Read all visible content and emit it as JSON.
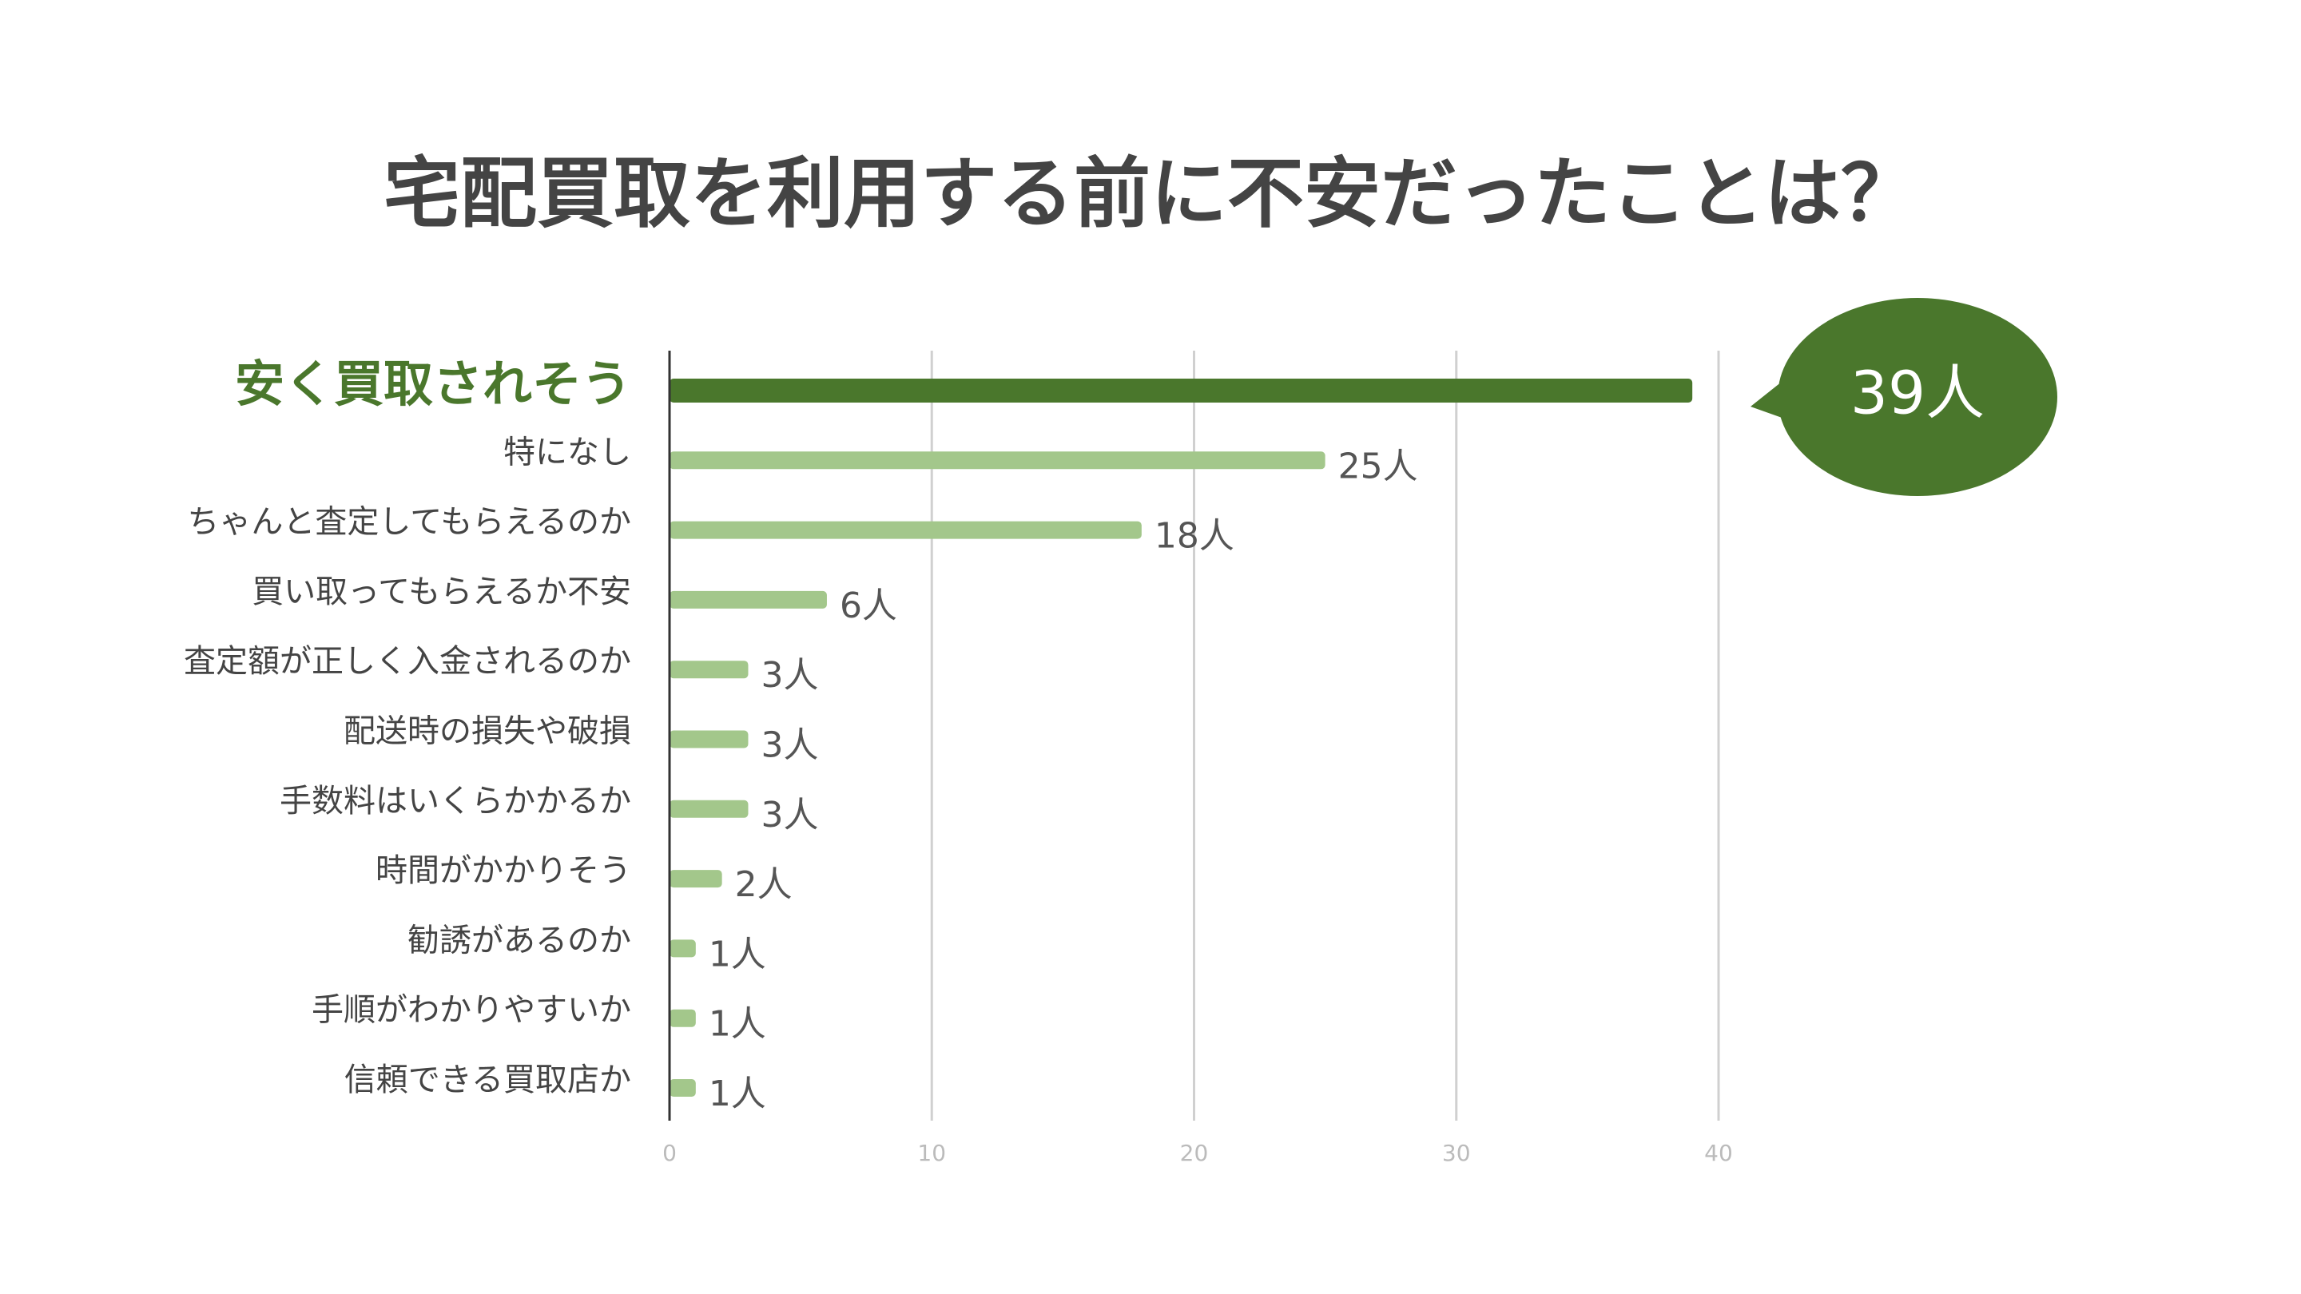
{
  "chart_data": {
    "type": "barh",
    "title": "宅配買取を利用する前に不安だったことは？",
    "categories": [
      "安く買取されそう",
      "特になし",
      "ちゃんと査定してもらえるのか",
      "買い取ってもらえるか不安",
      "査定額が正しく入金されるのか",
      "配送時の損失や破損",
      "手数料はいくらかかるか",
      "時間がかかりそう",
      "勧誘があるのか",
      "手順がわかりやすいか",
      "信頼できる買取店か"
    ],
    "values": [
      39,
      25,
      18,
      6,
      3,
      3,
      3,
      2,
      1,
      1,
      1
    ],
    "value_labels": [
      "39人",
      "25人",
      "18人",
      "6人",
      "3人",
      "3人",
      "3人",
      "2人",
      "1人",
      "1人",
      "1人"
    ],
    "color": "#a3c78b",
    "highlight_color": "#4a772c",
    "highlight": 0,
    "xlim": [
      0,
      40
    ],
    "xticks": [
      0,
      10,
      20,
      30,
      40
    ],
    "grid": true
  }
}
